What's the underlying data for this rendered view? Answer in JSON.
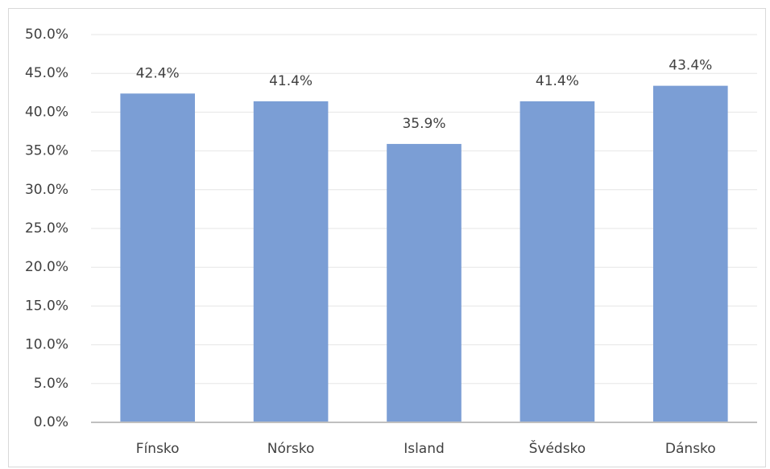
{
  "chart_data": {
    "type": "bar",
    "categories": [
      "Fínsko",
      "Nórsko",
      "Island",
      "Švédsko",
      "Dánsko"
    ],
    "values": [
      42.4,
      41.4,
      35.9,
      41.4,
      43.4
    ],
    "value_labels": [
      "42.4%",
      "41.4%",
      "35.9%",
      "41.4%",
      "43.4%"
    ],
    "color": "#7b9ed5",
    "ylim": [
      0,
      50
    ],
    "yticks": [
      {
        "value": 0,
        "label": "0.0%"
      },
      {
        "value": 5,
        "label": "5.0%"
      },
      {
        "value": 10,
        "label": "10.0%"
      },
      {
        "value": 15,
        "label": "15.0%"
      },
      {
        "value": 20,
        "label": "20.0%"
      },
      {
        "value": 25,
        "label": "25.0%"
      },
      {
        "value": 30,
        "label": "30.0%"
      },
      {
        "value": 35,
        "label": "35.0%"
      },
      {
        "value": 40,
        "label": "40.0%"
      },
      {
        "value": 45,
        "label": "45.0%"
      },
      {
        "value": 50,
        "label": "50.0%"
      }
    ],
    "grid": true
  }
}
